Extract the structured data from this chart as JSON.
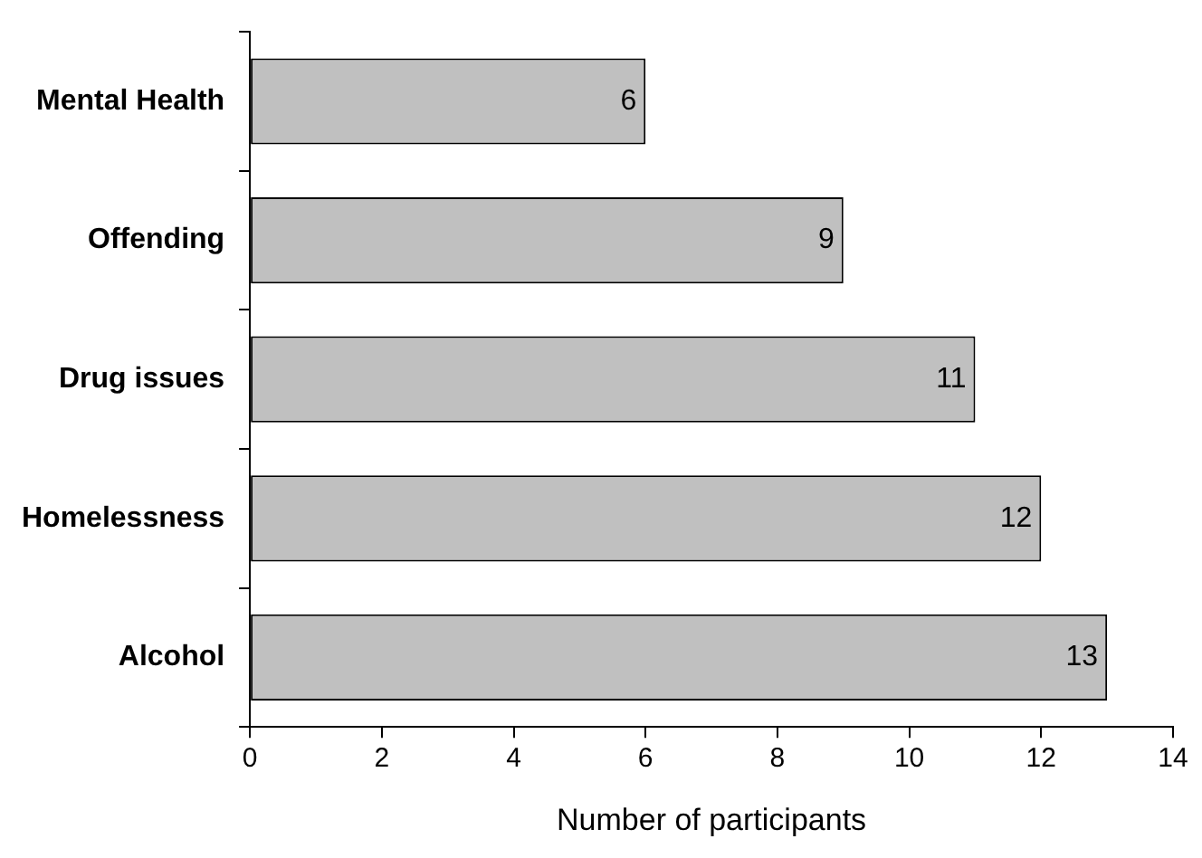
{
  "chart_data": {
    "type": "bar",
    "orientation": "horizontal",
    "xlabel": "Number of participants",
    "categories": [
      "Mental Health",
      "Offending",
      "Drug issues",
      "Homelessness",
      "Alcohol"
    ],
    "values": [
      6,
      9,
      11,
      12,
      13
    ],
    "color": "#c0c0c0",
    "xlim": [
      0,
      14
    ],
    "xticks": [
      0,
      2,
      4,
      6,
      8,
      10,
      12,
      14
    ],
    "grid": false,
    "legend": false,
    "data_labels": true
  }
}
